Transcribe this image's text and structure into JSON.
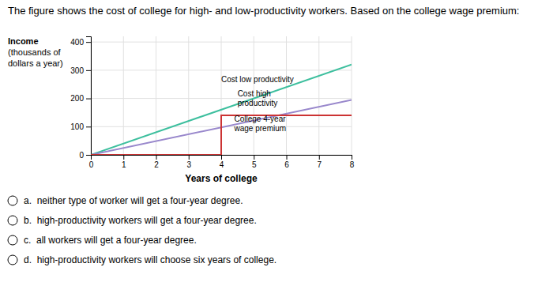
{
  "chart_data": {
    "type": "line",
    "title": "The figure shows the cost of college for high- and low-productivity workers. Based on the college wage premium:",
    "x_label": "Years of college",
    "y_label": [
      "Income",
      "(thousands of",
      "dollars a year)"
    ],
    "xlim": [
      0,
      8
    ],
    "xticks": [
      0,
      1,
      2,
      3,
      4,
      5,
      6,
      7,
      8
    ],
    "ylim": [
      0,
      420
    ],
    "yticks": [
      0,
      100,
      200,
      300,
      400
    ],
    "grid": true,
    "series": [
      {
        "color": "#3dbf9e",
        "x": [
          0,
          8
        ],
        "values": [
          0,
          320
        ]
      },
      {
        "color": "#9988cc",
        "x": [
          0,
          8
        ],
        "values": [
          0,
          195
        ]
      },
      {
        "color": "#cc3333",
        "x": [
          0,
          4,
          4,
          8
        ],
        "values": [
          0,
          0,
          140,
          140
        ]
      }
    ],
    "annotations": [
      {
        "text": "Cost low productivity",
        "x": 4.0,
        "y": 265
      },
      {
        "text": "Cost high\nproductivity",
        "x": 4.5,
        "y": 198
      },
      {
        "text": "College 4-year\nwage premium",
        "x": 4.4,
        "y": 108
      }
    ]
  },
  "options": [
    "a.  neither type of worker will get a four-year degree.",
    "b.  high-productivity workers will get a four-year degree.",
    "c.  all workers will get a four-year degree.",
    "d.  high-productivity workers will choose six years of college."
  ]
}
